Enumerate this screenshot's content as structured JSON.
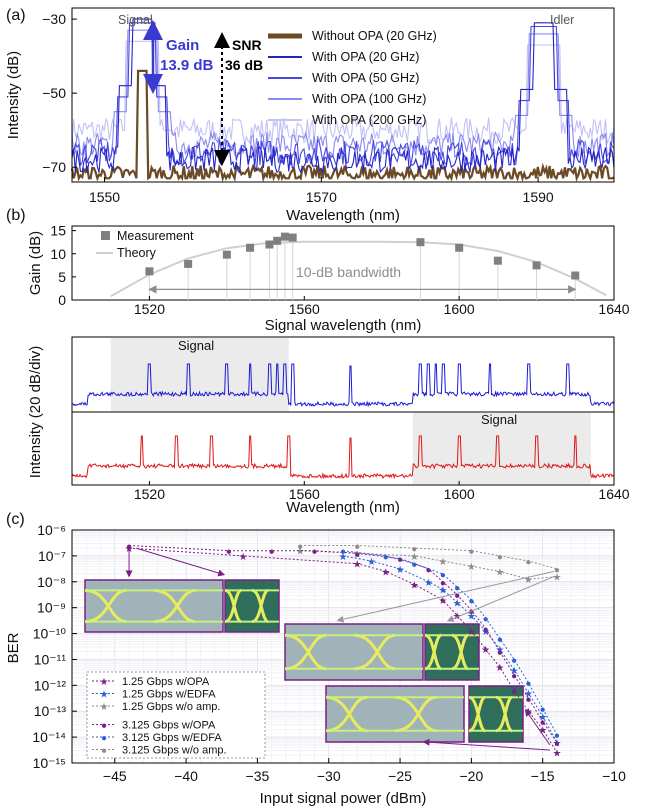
{
  "panel_a": {
    "label": "(a)",
    "xlabel": "Wavelength (nm)",
    "ylabel": "Intensity (dB)",
    "signal_text": "Signal",
    "idler_text": "Idler",
    "gain_text": "Gain",
    "gain_value": "13.9 dB",
    "snr_text": "SNR",
    "snr_value": "36 dB",
    "legend": [
      "Without OPA (20 GHz)",
      "With OPA (20 GHz)",
      "With OPA (50 GHz)",
      "With OPA (100 GHz)",
      "With OPA (200 GHz)"
    ],
    "xticks": [
      "1550",
      "1570",
      "1590"
    ],
    "yticks": [
      "−30",
      "−50",
      "−70"
    ]
  },
  "panel_b": {
    "label": "(b)",
    "top_xlabel": "Signal wavelength (nm)",
    "top_ylabel": "Gain (dB)",
    "legend_measure": "Measurement",
    "legend_theory": "Theory",
    "bandwidth_text": "10-dB bandwidth",
    "top_xticks": [
      "1520",
      "1560",
      "1600",
      "1640"
    ],
    "top_yticks": [
      "15",
      "10",
      "5",
      "0"
    ],
    "bottom_ylabel": "Intensity (20 dB/div)",
    "bottom_xlabel": "Wavelength (nm)",
    "signal_text_1": "Signal",
    "signal_text_2": "Signal",
    "bottom_xticks": [
      "1520",
      "1560",
      "1600",
      "1640"
    ]
  },
  "panel_c": {
    "label": "(c)",
    "xlabel": "Input signal power (dBm)",
    "ylabel": "BER",
    "yticks": [
      "10⁻⁶",
      "10⁻⁷",
      "10⁻⁸",
      "10⁻⁹",
      "10⁻¹⁰",
      "10⁻¹¹",
      "10⁻¹²",
      "10⁻¹³",
      "10⁻¹⁴",
      "10⁻¹⁵"
    ],
    "xticks": [
      "−45",
      "−40",
      "−35",
      "−30",
      "−25",
      "−20",
      "−15",
      "−10"
    ],
    "legend": [
      "1.25 Gbps w/OPA",
      "1.25 Gbps w/EDFA",
      "1.25 Gbps w/o amp.",
      "3.125 Gbps w/OPA",
      "3.125 Gbps w/EDFA",
      "3.125 Gbps w/o amp."
    ]
  },
  "colors": {
    "without_opa": "#6b4a26",
    "opa20": "#2323c8",
    "opa50": "#4848e0",
    "opa100": "#8a8af0",
    "opa200": "#c2c2f6",
    "gain_arrow": "#3a3ad0",
    "measurement": "#7f7f7f",
    "theory": "#cfcfcf",
    "blue_trace": "#1a1ad6",
    "red_trace": "#e01515",
    "opa": "#7a1f86",
    "edfa": "#2f5fd8",
    "noamp": "#8c8c8c"
  },
  "chart_data": [
    {
      "type": "line",
      "title": "",
      "xlabel": "Wavelength (nm)",
      "ylabel": "Intensity (dB)",
      "xlim": [
        1547,
        1597
      ],
      "ylim": [
        -74,
        -27
      ],
      "series": [
        {
          "name": "Without OPA (20 GHz)",
          "signal_peak_nm": 1553.5,
          "peak_dB": -44,
          "noise_floor_dB": -70
        },
        {
          "name": "With OPA (20 GHz)",
          "signal_peak_nm": 1553.5,
          "idler_peak_nm": 1590.5,
          "peak_dB": -30,
          "noise_floor_dB": -68
        },
        {
          "name": "With OPA (50 GHz)",
          "peak_dB": -31,
          "noise_floor_dB": -66
        },
        {
          "name": "With OPA (100 GHz)",
          "peak_dB": -33,
          "noise_floor_dB": -64
        },
        {
          "name": "With OPA (200 GHz)",
          "peak_dB": -36,
          "noise_floor_dB": -60
        }
      ],
      "annotations": {
        "gain_dB": 13.9,
        "snr_dB": 36
      }
    },
    {
      "type": "scatter",
      "xlabel": "Signal wavelength (nm)",
      "ylabel": "Gain (dB)",
      "xlim": [
        1500,
        1640
      ],
      "ylim": [
        0,
        16
      ],
      "series": [
        {
          "name": "Measurement",
          "x": [
            1520,
            1530,
            1540,
            1546,
            1551,
            1553,
            1555,
            1557,
            1590,
            1600,
            1610,
            1620,
            1630
          ],
          "y": [
            6.2,
            7.8,
            9.8,
            11.3,
            12.0,
            12.8,
            13.7,
            13.5,
            12.5,
            11.3,
            8.5,
            7.5,
            5.3
          ]
        },
        {
          "name": "Theory",
          "x": [
            1510,
            1520,
            1530,
            1540,
            1550,
            1560,
            1570,
            1580,
            1590,
            1600,
            1610,
            1620,
            1630,
            1638
          ],
          "y": [
            0.8,
            5.5,
            9.0,
            11.2,
            12.3,
            12.6,
            12.6,
            12.6,
            12.5,
            12.0,
            10.6,
            8.2,
            4.6,
            1.0
          ]
        }
      ],
      "bandwidth_nm": [
        1520,
        1630
      ]
    },
    {
      "type": "line",
      "xlabel": "Wavelength (nm)",
      "ylabel": "Intensity (20 dB/div)",
      "xlim": [
        1500,
        1640
      ],
      "series": [
        {
          "name": "",
          "signal_peaks_nm": [
            1520,
            1530,
            1540,
            1546,
            1551,
            1553,
            1555,
            1557
          ],
          "idler_peaks_nm": [
            1590,
            1592,
            1594,
            1596,
            1600,
            1608,
            1618,
            1628
          ],
          "pump_nm": 1572
        },
        {
          "name": "",
          "signal_peaks_nm": [
            1590,
            1600,
            1610,
            1620,
            1630
          ],
          "idler_peaks_nm": [
            1518,
            1527,
            1536,
            1546,
            1556
          ],
          "pump_nm": 1572
        }
      ]
    },
    {
      "type": "scatter",
      "xlabel": "Input signal power (dBm)",
      "ylabel": "BER",
      "xlim": [
        -48,
        -10
      ],
      "ylim_log10": [
        -15,
        -6
      ],
      "series": [
        {
          "name": "1.25 Gbps w/OPA",
          "x": [
            -44,
            -36,
            -28,
            -26,
            -24,
            -22,
            -21,
            -20,
            -19,
            -18,
            -17,
            -16,
            -15,
            -14
          ],
          "log10_ber": [
            -6.7,
            -7.0,
            -7.3,
            -7.6,
            -8.1,
            -8.7,
            -9.3,
            -9.9,
            -10.6,
            -11.3,
            -12.2,
            -13.0,
            -13.7,
            -14.6
          ]
        },
        {
          "name": "1.25 Gbps w/EDFA",
          "x": [
            -29,
            -27,
            -25,
            -23,
            -22,
            -21,
            -20,
            -19,
            -18,
            -17,
            -16,
            -15,
            -14
          ],
          "log10_ber": [
            -7.0,
            -7.2,
            -7.5,
            -8.0,
            -8.3,
            -8.8,
            -9.3,
            -9.9,
            -10.6,
            -11.4,
            -12.3,
            -13.2,
            -14.2
          ]
        },
        {
          "name": "1.25 Gbps w/o amp.",
          "x": [
            -32,
            -28,
            -24,
            -22,
            -20,
            -18,
            -16,
            -14
          ],
          "log10_ber": [
            -6.8,
            -6.9,
            -7.0,
            -7.2,
            -7.4,
            -7.6,
            -7.9,
            -7.8
          ]
        },
        {
          "name": "3.125 Gbps w/OPA",
          "x": [
            -44,
            -37,
            -34,
            -31,
            -28,
            -25,
            -23,
            -22,
            -21,
            -20,
            -19,
            -18,
            -17,
            -16,
            -15,
            -14
          ],
          "log10_ber": [
            -6.6,
            -6.8,
            -6.8,
            -6.8,
            -6.9,
            -7.1,
            -7.5,
            -8.0,
            -8.5,
            -9.1,
            -9.8,
            -10.7,
            -11.6,
            -12.5,
            -13.4,
            -14.2
          ]
        },
        {
          "name": "3.125 Gbps w/EDFA",
          "x": [
            -29,
            -26,
            -24,
            -22,
            -21,
            -20,
            -19,
            -18,
            -17,
            -16,
            -15,
            -14
          ],
          "log10_ber": [
            -6.8,
            -7.0,
            -7.3,
            -7.7,
            -8.2,
            -8.7,
            -9.4,
            -10.2,
            -11.0,
            -11.9,
            -12.9,
            -13.9
          ]
        },
        {
          "name": "3.125 Gbps w/o amp.",
          "x": [
            -32,
            -28,
            -24,
            -20,
            -18,
            -16,
            -14
          ],
          "log10_ber": [
            -6.6,
            -6.6,
            -6.7,
            -6.8,
            -7.0,
            -7.2,
            -7.5
          ]
        }
      ]
    }
  ]
}
